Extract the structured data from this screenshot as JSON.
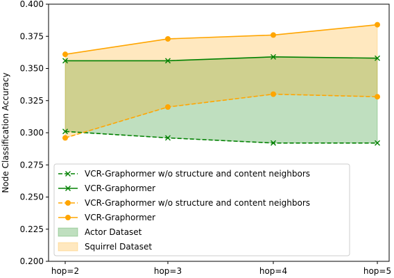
{
  "chart_data": {
    "type": "line",
    "title": "",
    "xlabel": "",
    "ylabel": "Node Classification Accuracy",
    "categories": [
      "hop=2",
      "hop=3",
      "hop=4",
      "hop=5"
    ],
    "ylim": [
      0.2,
      0.4
    ],
    "yticks": [
      "0.200",
      "0.225",
      "0.250",
      "0.275",
      "0.300",
      "0.325",
      "0.350",
      "0.375",
      "0.400"
    ],
    "grid": false,
    "legend_position": "lower-left",
    "series": [
      {
        "name": "VCR-Graphormer w/o structure and content neighbors",
        "values": [
          0.301,
          0.296,
          0.292,
          0.292
        ],
        "color": "#008000",
        "linestyle": "dashed",
        "marker": "x"
      },
      {
        "name": "VCR-Graphormer",
        "values": [
          0.356,
          0.356,
          0.359,
          0.358
        ],
        "color": "#008000",
        "linestyle": "solid",
        "marker": "x"
      },
      {
        "name": "VCR-Graphormer w/o structure and content neighbors",
        "values": [
          0.296,
          0.32,
          0.33,
          0.328
        ],
        "color": "#FFA500",
        "linestyle": "dashed",
        "marker": "o"
      },
      {
        "name": "VCR-Graphormer",
        "values": [
          0.361,
          0.373,
          0.376,
          0.384
        ],
        "color": "#FFA500",
        "linestyle": "solid",
        "marker": "o"
      }
    ],
    "fills": [
      {
        "name": "Actor Dataset",
        "between": [
          0,
          1
        ],
        "color": "#008000",
        "alpha": 0.25
      },
      {
        "name": "Squirrel Dataset",
        "between": [
          2,
          3
        ],
        "color": "#FFA500",
        "alpha": 0.25
      }
    ]
  }
}
